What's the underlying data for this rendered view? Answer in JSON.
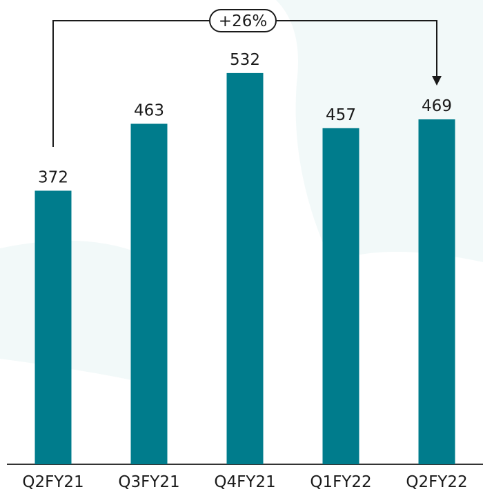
{
  "chart_data": {
    "type": "bar",
    "categories": [
      "Q2FY21",
      "Q3FY21",
      "Q4FY21",
      "Q1FY22",
      "Q2FY22"
    ],
    "values": [
      372,
      463,
      532,
      457,
      469
    ],
    "color": "#007c8c",
    "annotation": "+26%"
  }
}
